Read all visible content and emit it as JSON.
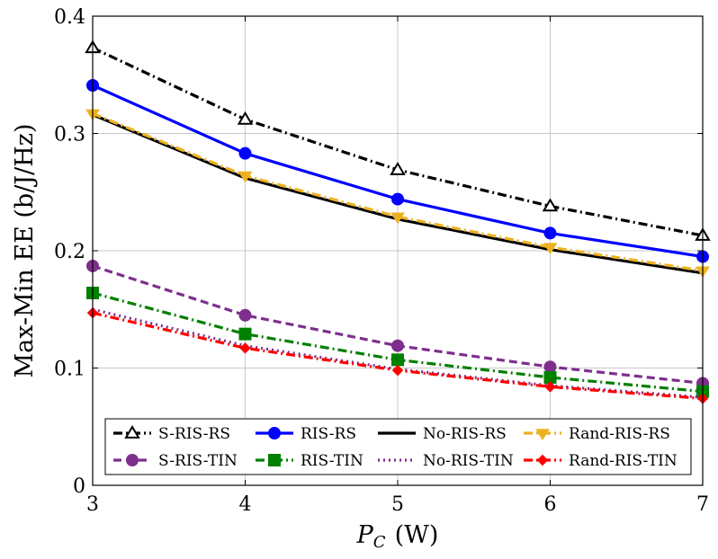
{
  "chart_data": {
    "type": "line",
    "title": "",
    "xlabel_main": "P",
    "xlabel_sub": "C",
    "xlabel_unit": "(W)",
    "ylabel": "Max-Min EE (b/J/Hz)",
    "x": [
      3,
      4,
      5,
      6,
      7
    ],
    "xlim": [
      3,
      7
    ],
    "ylim": [
      0,
      0.4
    ],
    "xticks": [
      3,
      4,
      5,
      6,
      7
    ],
    "yticks": [
      0,
      0.1,
      0.2,
      0.3,
      0.4
    ],
    "xtick_labels": [
      "3",
      "4",
      "5",
      "6",
      "7"
    ],
    "ytick_labels": [
      "0",
      "0.1",
      "0.2",
      "0.3",
      "0.4"
    ],
    "grid": true,
    "legend_position": "bottom",
    "series": [
      {
        "name": "S-RIS-RS",
        "values": [
          0.373,
          0.312,
          0.269,
          0.238,
          0.213
        ],
        "color": "#000000",
        "dash": "dashdot",
        "marker": "triangle-up-open"
      },
      {
        "name": "RIS-RS",
        "values": [
          0.341,
          0.283,
          0.244,
          0.215,
          0.195
        ],
        "color": "#0000ff",
        "dash": "solid",
        "marker": "circle"
      },
      {
        "name": "No-RIS-RS",
        "values": [
          0.316,
          0.262,
          0.227,
          0.201,
          0.181
        ],
        "color": "#000000",
        "dash": "solid",
        "marker": "none"
      },
      {
        "name": "Rand-RIS-RS",
        "values": [
          0.317,
          0.264,
          0.229,
          0.203,
          0.183
        ],
        "color": "#edb120",
        "dash": "dashdot",
        "marker": "triangle-down"
      },
      {
        "name": "S-RIS-TIN",
        "values": [
          0.187,
          0.145,
          0.119,
          0.101,
          0.087
        ],
        "color": "#7e2f8e",
        "dash": "dashed",
        "marker": "circle"
      },
      {
        "name": "RIS-TIN",
        "values": [
          0.164,
          0.129,
          0.107,
          0.092,
          0.08
        ],
        "color": "#008000",
        "dash": "dashdot",
        "marker": "square"
      },
      {
        "name": "No-RIS-TIN",
        "values": [
          0.15,
          0.119,
          0.099,
          0.085,
          0.075
        ],
        "color": "#7e2f8e",
        "dash": "dotted",
        "marker": "none"
      },
      {
        "name": "Rand-RIS-TIN",
        "values": [
          0.147,
          0.117,
          0.098,
          0.084,
          0.074
        ],
        "color": "#ff0000",
        "dash": "dashdot",
        "marker": "diamond"
      }
    ]
  }
}
